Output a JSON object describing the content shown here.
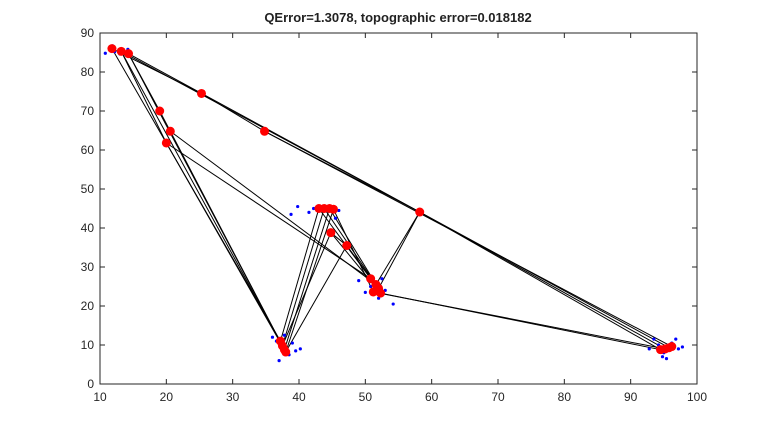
{
  "chart_data": {
    "type": "scatter",
    "title": "QError=1.3078, topographic error=0.018182",
    "xlabel": "",
    "ylabel": "",
    "xlim": [
      10,
      100
    ],
    "ylim": [
      0,
      90
    ],
    "xticks": [
      "10",
      "20",
      "30",
      "40",
      "50",
      "60",
      "70",
      "80",
      "90",
      "100"
    ],
    "yticks": [
      "0",
      "10",
      "20",
      "30",
      "40",
      "50",
      "60",
      "70",
      "80",
      "90"
    ],
    "grid": false,
    "legend": "none",
    "colors": {
      "data": "#0000ff",
      "neurons": "#ff0000",
      "edges": "#000000"
    },
    "data_points": [
      [
        10.8,
        84.8
      ],
      [
        11.5,
        86.0
      ],
      [
        12.2,
        85.2
      ],
      [
        13.0,
        84.6
      ],
      [
        14.2,
        85.8
      ],
      [
        11.9,
        86.7
      ],
      [
        36.0,
        12.0
      ],
      [
        36.6,
        11.0
      ],
      [
        37.0,
        6.0
      ],
      [
        37.4,
        9.0
      ],
      [
        37.8,
        12.5
      ],
      [
        38.5,
        7.5
      ],
      [
        39.0,
        10.5
      ],
      [
        39.5,
        8.5
      ],
      [
        40.2,
        9.0
      ],
      [
        39.8,
        45.5
      ],
      [
        38.8,
        43.5
      ],
      [
        41.5,
        44.0
      ],
      [
        42.2,
        45.0
      ],
      [
        46.0,
        44.5
      ],
      [
        45.5,
        42.5
      ],
      [
        49.0,
        26.5
      ],
      [
        50.0,
        23.5
      ],
      [
        50.8,
        25.0
      ],
      [
        52.5,
        27.0
      ],
      [
        53.0,
        24.0
      ],
      [
        54.2,
        20.5
      ],
      [
        52.0,
        22.0
      ],
      [
        92.8,
        9.0
      ],
      [
        93.5,
        11.5
      ],
      [
        94.2,
        10.0
      ],
      [
        95.0,
        8.0
      ],
      [
        95.4,
        6.5
      ],
      [
        96.2,
        10.5
      ],
      [
        96.8,
        11.5
      ],
      [
        97.2,
        9.0
      ],
      [
        97.8,
        9.5
      ],
      [
        94.8,
        7.0
      ]
    ],
    "neurons": [
      [
        11.8,
        86.0
      ],
      [
        13.2,
        85.3
      ],
      [
        14.3,
        84.7
      ],
      [
        25.3,
        74.5
      ],
      [
        19.0,
        70.0
      ],
      [
        20.6,
        64.8
      ],
      [
        20.0,
        61.8
      ],
      [
        34.8,
        64.8
      ],
      [
        58.2,
        44.1
      ],
      [
        43.0,
        45.0
      ],
      [
        43.8,
        45.0
      ],
      [
        44.6,
        45.0
      ],
      [
        45.2,
        44.8
      ],
      [
        44.8,
        38.8
      ],
      [
        47.2,
        35.5
      ],
      [
        50.8,
        27.0
      ],
      [
        51.6,
        25.5
      ],
      [
        52.0,
        24.5
      ],
      [
        51.2,
        23.6
      ],
      [
        52.3,
        23.3
      ],
      [
        37.2,
        11.0
      ],
      [
        37.5,
        9.8
      ],
      [
        37.8,
        8.8
      ],
      [
        38.0,
        8.2
      ],
      [
        94.5,
        8.8
      ],
      [
        95.2,
        9.0
      ],
      [
        95.8,
        9.3
      ],
      [
        96.2,
        9.6
      ]
    ],
    "edges": [
      [
        [
          11.8,
          86.0
        ],
        [
          37.2,
          11.0
        ]
      ],
      [
        [
          13.2,
          85.3
        ],
        [
          37.5,
          9.8
        ]
      ],
      [
        [
          14.3,
          84.7
        ],
        [
          37.8,
          8.8
        ]
      ],
      [
        [
          14.3,
          84.7
        ],
        [
          19.0,
          70.0
        ]
      ],
      [
        [
          19.0,
          70.0
        ],
        [
          20.6,
          64.8
        ]
      ],
      [
        [
          20.6,
          64.8
        ],
        [
          37.8,
          8.8
        ]
      ],
      [
        [
          20.0,
          61.8
        ],
        [
          38.0,
          8.2
        ]
      ],
      [
        [
          13.2,
          85.3
        ],
        [
          20.0,
          61.8
        ]
      ],
      [
        [
          20.0,
          61.8
        ],
        [
          50.8,
          27.0
        ]
      ],
      [
        [
          20.6,
          64.8
        ],
        [
          51.6,
          25.5
        ]
      ],
      [
        [
          11.8,
          86.0
        ],
        [
          25.3,
          74.5
        ]
      ],
      [
        [
          25.3,
          74.5
        ],
        [
          34.8,
          64.8
        ]
      ],
      [
        [
          34.8,
          64.8
        ],
        [
          58.2,
          44.1
        ]
      ],
      [
        [
          13.2,
          85.3
        ],
        [
          58.2,
          44.1
        ]
      ],
      [
        [
          14.3,
          84.7
        ],
        [
          58.2,
          44.1
        ]
      ],
      [
        [
          58.2,
          44.1
        ],
        [
          94.5,
          8.8
        ]
      ],
      [
        [
          58.2,
          44.1
        ],
        [
          95.2,
          9.0
        ]
      ],
      [
        [
          58.2,
          44.1
        ],
        [
          95.8,
          9.3
        ]
      ],
      [
        [
          34.8,
          64.8
        ],
        [
          96.2,
          9.6
        ]
      ],
      [
        [
          58.2,
          44.1
        ],
        [
          51.6,
          25.5
        ]
      ],
      [
        [
          58.2,
          44.1
        ],
        [
          52.0,
          24.5
        ]
      ],
      [
        [
          52.3,
          23.3
        ],
        [
          94.5,
          8.8
        ]
      ],
      [
        [
          51.2,
          23.6
        ],
        [
          95.2,
          9.0
        ]
      ],
      [
        [
          37.2,
          11.0
        ],
        [
          43.0,
          45.0
        ]
      ],
      [
        [
          37.5,
          9.8
        ],
        [
          43.8,
          45.0
        ]
      ],
      [
        [
          37.8,
          8.8
        ],
        [
          44.6,
          45.0
        ]
      ],
      [
        [
          38.0,
          8.2
        ],
        [
          45.2,
          44.8
        ]
      ],
      [
        [
          37.5,
          9.8
        ],
        [
          44.8,
          38.8
        ]
      ],
      [
        [
          38.0,
          8.2
        ],
        [
          47.2,
          35.5
        ]
      ],
      [
        [
          43.0,
          45.0
        ],
        [
          50.8,
          27.0
        ]
      ],
      [
        [
          43.8,
          45.0
        ],
        [
          51.6,
          25.5
        ]
      ],
      [
        [
          44.6,
          45.0
        ],
        [
          52.0,
          24.5
        ]
      ],
      [
        [
          45.2,
          44.8
        ],
        [
          51.2,
          23.6
        ]
      ],
      [
        [
          44.8,
          38.8
        ],
        [
          52.3,
          23.3
        ]
      ],
      [
        [
          47.2,
          35.5
        ],
        [
          52.0,
          24.5
        ]
      ],
      [
        [
          43.0,
          45.0
        ],
        [
          45.2,
          44.8
        ]
      ],
      [
        [
          50.8,
          27.0
        ],
        [
          52.3,
          23.3
        ]
      ],
      [
        [
          51.6,
          25.5
        ],
        [
          51.2,
          23.6
        ]
      ],
      [
        [
          44.8,
          38.8
        ],
        [
          47.2,
          35.5
        ]
      ],
      [
        [
          37.2,
          11.0
        ],
        [
          38.0,
          8.2
        ]
      ],
      [
        [
          94.5,
          8.8
        ],
        [
          96.2,
          9.6
        ]
      ]
    ]
  }
}
